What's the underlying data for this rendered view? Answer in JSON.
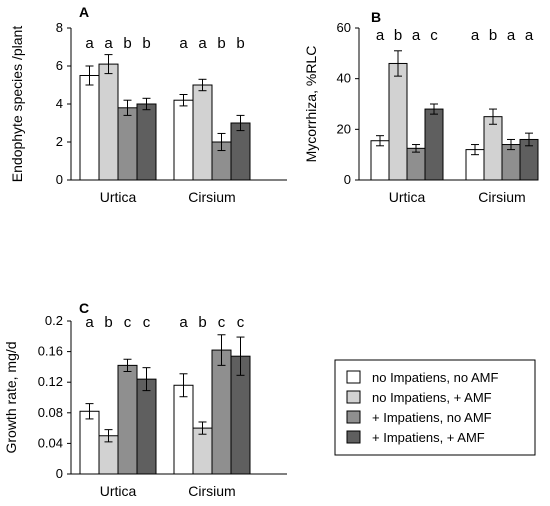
{
  "series_colors": [
    "#ffffff",
    "#d2d2d2",
    "#8f8f8f",
    "#5f5f5f"
  ],
  "legend": {
    "entries": [
      "no Impatiens, no AMF",
      "no Impatiens, + AMF",
      "+ Impatiens, no AMF",
      "+ Impatiens, + AMF"
    ]
  },
  "chart_data": [
    {
      "type": "bar",
      "panel": "A",
      "ylabel": "Endophyte species /plant",
      "categories": [
        "Urtica",
        "Cirsium"
      ],
      "ylim": [
        0,
        8
      ],
      "yticks": [
        0,
        2,
        4,
        6,
        8
      ],
      "ytick_labels": [
        "0",
        "2",
        "4",
        "6",
        "8"
      ],
      "series": [
        {
          "values": [
            5.5,
            4.2
          ],
          "errors": [
            0.5,
            0.3
          ]
        },
        {
          "values": [
            6.1,
            5.0
          ],
          "errors": [
            0.5,
            0.3
          ]
        },
        {
          "values": [
            3.8,
            2.0
          ],
          "errors": [
            0.4,
            0.45
          ]
        },
        {
          "values": [
            4.0,
            3.0
          ],
          "errors": [
            0.3,
            0.4
          ]
        }
      ],
      "significance": [
        [
          "a",
          "a",
          "b",
          "b"
        ],
        [
          "a",
          "a",
          "b",
          "b"
        ]
      ]
    },
    {
      "type": "bar",
      "panel": "B",
      "ylabel": "Mycorrhiza, %RLC",
      "categories": [
        "Urtica",
        "Cirsium"
      ],
      "ylim": [
        0,
        60
      ],
      "yticks": [
        0,
        20,
        40,
        60
      ],
      "ytick_labels": [
        "0",
        "20",
        "40",
        "60"
      ],
      "series": [
        {
          "values": [
            15.5,
            12
          ],
          "errors": [
            2,
            2
          ]
        },
        {
          "values": [
            46,
            25
          ],
          "errors": [
            5,
            3
          ]
        },
        {
          "values": [
            12.5,
            14
          ],
          "errors": [
            1.5,
            2
          ]
        },
        {
          "values": [
            28,
            16
          ],
          "errors": [
            2,
            2.5
          ]
        }
      ],
      "significance": [
        [
          "a",
          "b",
          "a",
          "c"
        ],
        [
          "a",
          "b",
          "a",
          "a"
        ]
      ]
    },
    {
      "type": "bar",
      "panel": "C",
      "ylabel": "Growth rate, mg/d",
      "categories": [
        "Urtica",
        "Cirsium"
      ],
      "ylim": [
        0,
        0.2
      ],
      "yticks": [
        0,
        0.04,
        0.08,
        0.12,
        0.16,
        0.2
      ],
      "ytick_labels": [
        "0",
        "0.04",
        "0.08",
        "0.12",
        "0.16",
        "0.2"
      ],
      "series": [
        {
          "values": [
            0.082,
            0.116
          ],
          "errors": [
            0.01,
            0.015
          ]
        },
        {
          "values": [
            0.05,
            0.06
          ],
          "errors": [
            0.008,
            0.008
          ]
        },
        {
          "values": [
            0.142,
            0.162
          ],
          "errors": [
            0.008,
            0.02
          ]
        },
        {
          "values": [
            0.124,
            0.154
          ],
          "errors": [
            0.015,
            0.025
          ]
        }
      ],
      "significance": [
        [
          "a",
          "b",
          "c",
          "c"
        ],
        [
          "a",
          "b",
          "c",
          "c"
        ]
      ]
    }
  ]
}
